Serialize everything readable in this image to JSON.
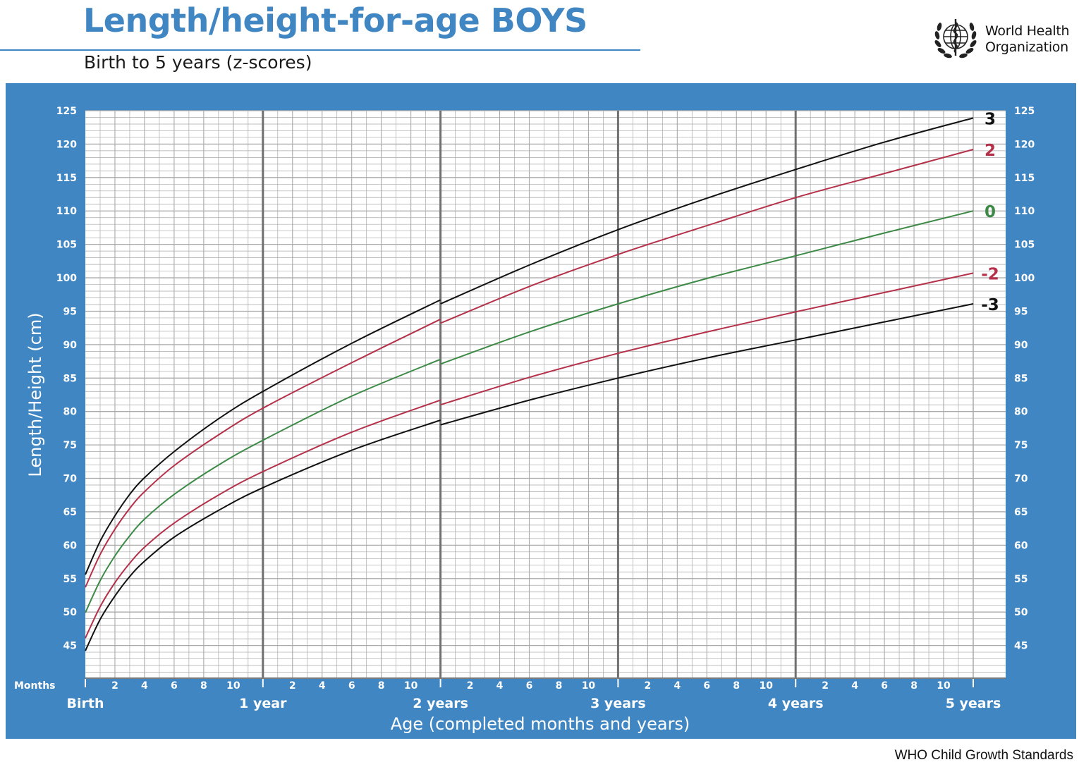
{
  "header": {
    "title": "Length/height-for-age BOYS",
    "subtitle": "Birth to 5 years (z-scores)",
    "org_line1": "World Health",
    "org_line2": "Organization"
  },
  "footer": {
    "note": "WHO Child Growth Standards"
  },
  "colors": {
    "brand_blue": "#3f86c3",
    "grid_line": "#a9a9a9",
    "year_line": "#707070",
    "z3": "#111111",
    "z2": "#b5314a",
    "z0": "#3c8a46"
  },
  "icons": {
    "logo": "who-emblem-icon"
  },
  "chart_data": {
    "type": "line",
    "title": "Length/height-for-age BOYS",
    "subtitle": "Birth to 5 years (z-scores)",
    "xlabel": "Age (completed months and years)",
    "ylabel": "Length/Height (cm)",
    "x_unit_label": "Months",
    "xlim": [
      0,
      60
    ],
    "ylim": [
      40,
      125
    ],
    "y_ticks": [
      45,
      50,
      55,
      60,
      65,
      70,
      75,
      80,
      85,
      90,
      95,
      100,
      105,
      110,
      115,
      120,
      125
    ],
    "x_month_ticks": [
      2,
      4,
      6,
      8,
      10
    ],
    "x_year_labels": [
      "Birth",
      "1 year",
      "2 years",
      "3 years",
      "4 years",
      "5 years"
    ],
    "grid": true,
    "legend": "curve labels at right end",
    "series": [
      {
        "name": "3",
        "color": "#111111",
        "x": [
          0,
          1,
          2,
          3,
          4,
          6,
          9,
          12,
          18,
          24,
          24,
          30,
          36,
          42,
          48,
          54,
          60
        ],
        "y": [
          55.6,
          60.6,
          64.4,
          67.6,
          70.1,
          74.0,
          78.9,
          83.0,
          90.2,
          96.7,
          96.1,
          101.9,
          107.2,
          111.9,
          116.2,
          120.3,
          123.9
        ]
      },
      {
        "name": "2",
        "color": "#b5314a",
        "x": [
          0,
          1,
          2,
          3,
          4,
          6,
          9,
          12,
          18,
          24,
          24,
          30,
          36,
          42,
          48,
          54,
          60
        ],
        "y": [
          53.7,
          58.6,
          62.4,
          65.5,
          68.0,
          71.9,
          76.5,
          80.5,
          87.3,
          93.8,
          93.2,
          98.7,
          103.5,
          107.8,
          112.0,
          115.6,
          119.2
        ]
      },
      {
        "name": "0",
        "color": "#3c8a46",
        "x": [
          0,
          1,
          2,
          3,
          4,
          6,
          9,
          12,
          18,
          24,
          24,
          30,
          36,
          42,
          48,
          54,
          60
        ],
        "y": [
          49.9,
          54.7,
          58.4,
          61.4,
          63.9,
          67.6,
          72.0,
          75.7,
          82.3,
          87.8,
          87.1,
          91.9,
          96.1,
          99.9,
          103.3,
          106.7,
          110.0
        ]
      },
      {
        "name": "-2",
        "color": "#b5314a",
        "x": [
          0,
          1,
          2,
          3,
          4,
          6,
          9,
          12,
          18,
          24,
          24,
          30,
          36,
          42,
          48,
          54,
          60
        ],
        "y": [
          46.1,
          50.8,
          54.4,
          57.3,
          59.7,
          63.3,
          67.5,
          71.0,
          76.9,
          81.7,
          81.0,
          85.1,
          88.7,
          91.9,
          94.9,
          97.8,
          100.7
        ]
      },
      {
        "name": "-3",
        "color": "#111111",
        "x": [
          0,
          1,
          2,
          3,
          4,
          6,
          9,
          12,
          18,
          24,
          24,
          30,
          36,
          42,
          48,
          54,
          60
        ],
        "y": [
          44.2,
          48.9,
          52.4,
          55.3,
          57.6,
          61.2,
          65.2,
          68.6,
          74.2,
          78.7,
          78.0,
          81.7,
          85.0,
          88.0,
          90.7,
          93.4,
          96.1
        ]
      }
    ]
  }
}
